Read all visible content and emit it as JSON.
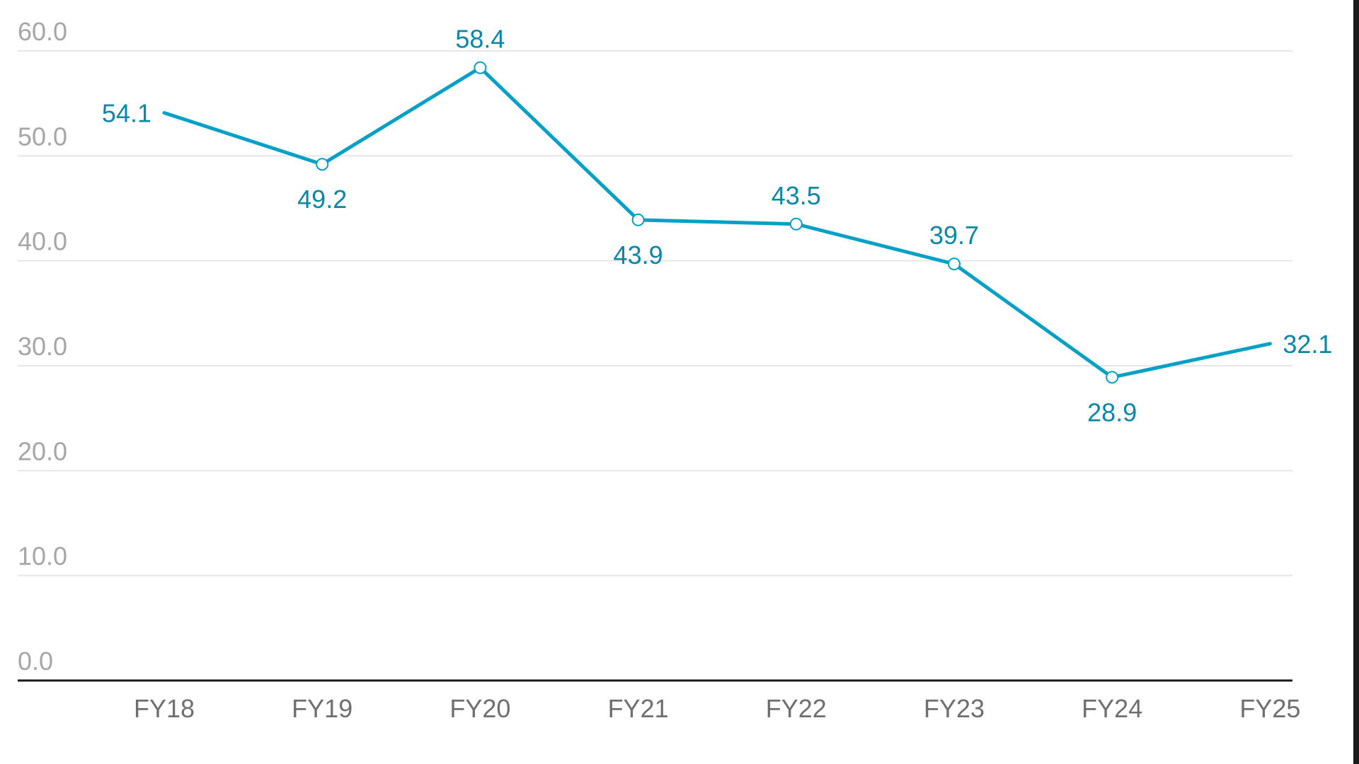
{
  "colors": {
    "series": "#05a0c6",
    "label": "#0a87a7",
    "grid": "#e6e6e6",
    "axis": "#1a1a1a",
    "y_tick": "#a6a6a6",
    "x_tick": "#6f6f6f"
  },
  "chart_data": {
    "type": "line",
    "title": "",
    "xlabel": "",
    "ylabel": "",
    "categories": [
      "FY18",
      "FY19",
      "FY20",
      "FY21",
      "FY22",
      "FY23",
      "FY24",
      "FY25"
    ],
    "series": [
      {
        "values": [
          54.1,
          49.2,
          58.4,
          43.9,
          43.5,
          39.7,
          28.9,
          32.1
        ],
        "labels": [
          "54.1",
          "49.2",
          "58.4",
          "43.9",
          "43.5",
          "39.7",
          "28.9",
          "32.1"
        ]
      }
    ],
    "y_ticks": [
      0,
      10,
      20,
      30,
      40,
      50,
      60
    ],
    "y_tick_labels": [
      "0.0",
      "10.0",
      "20.0",
      "30.0",
      "40.0",
      "50.0",
      "60.0"
    ],
    "ylim": [
      0,
      60
    ],
    "grid": true,
    "legend": "none",
    "markers": "hollow-circle-except-endpoints"
  }
}
